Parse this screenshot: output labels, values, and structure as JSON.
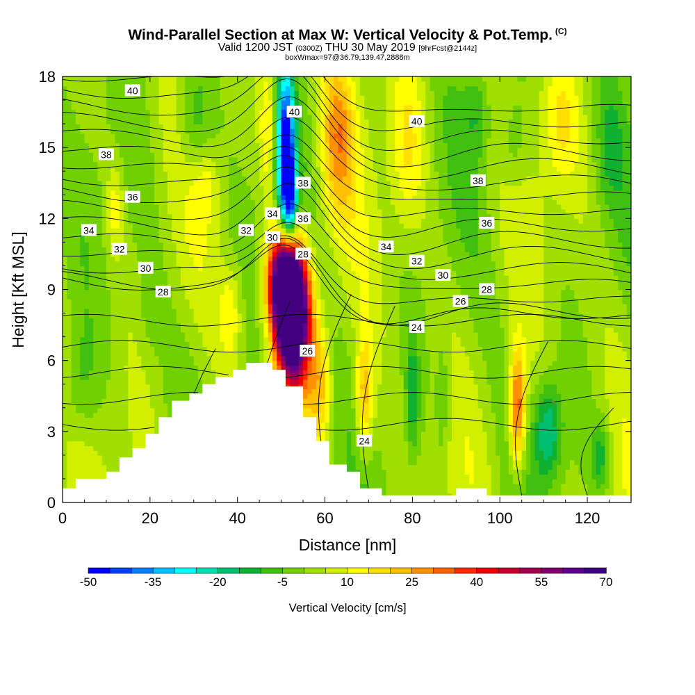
{
  "header": {
    "title": "Wind-Parallel Section at Max W: Vertical Velocity & Pot.Temp.",
    "copyright": "(C)",
    "valid_prefix": "Valid 1200 JST",
    "valid_utc": "(0300Z)",
    "valid_date": "THU 30 May 2019",
    "forecast": "[9hrFcst@2144z]",
    "box_info": "boxWmax=97@36.79,139.47,2888m"
  },
  "chart_data": {
    "type": "heatmap",
    "xlabel": "Distance [nm]",
    "ylabel": "Height [Kft MSL]",
    "xlim": [
      0,
      130
    ],
    "ylim": [
      0,
      18
    ],
    "x_ticks": [
      "0",
      "20",
      "40",
      "60",
      "80",
      "100",
      "120"
    ],
    "y_ticks": [
      "0",
      "3",
      "6",
      "9",
      "12",
      "15",
      "18"
    ],
    "colorbar": {
      "label": "Vertical Velocity [cm/s]",
      "min": -50,
      "max": 70,
      "step": 5,
      "tick_labels": [
        "-50",
        "-35",
        "-20",
        "-5",
        "10",
        "25",
        "40",
        "55",
        "70"
      ],
      "colors": [
        "#0000ff",
        "#0040ff",
        "#0080ff",
        "#00c0ff",
        "#00ffff",
        "#00e0b0",
        "#00c070",
        "#10b030",
        "#40c010",
        "#70d000",
        "#a0e000",
        "#d0f000",
        "#ffff00",
        "#ffe000",
        "#ffc000",
        "#ff9000",
        "#ff6000",
        "#ff2800",
        "#f00000",
        "#c80030",
        "#a00050",
        "#800070",
        "#600090",
        "#400080"
      ]
    },
    "terrain_profile": [
      {
        "x": 0,
        "y": 0.6
      },
      {
        "x": 3,
        "y": 0.6
      },
      {
        "x": 3,
        "y": 1.0
      },
      {
        "x": 10,
        "y": 1.0
      },
      {
        "x": 10,
        "y": 1.3
      },
      {
        "x": 13,
        "y": 1.3
      },
      {
        "x": 13,
        "y": 1.9
      },
      {
        "x": 16,
        "y": 1.9
      },
      {
        "x": 16,
        "y": 2.3
      },
      {
        "x": 19,
        "y": 2.3
      },
      {
        "x": 19,
        "y": 2.9
      },
      {
        "x": 22,
        "y": 2.9
      },
      {
        "x": 22,
        "y": 3.6
      },
      {
        "x": 25,
        "y": 3.6
      },
      {
        "x": 25,
        "y": 4.3
      },
      {
        "x": 29,
        "y": 4.3
      },
      {
        "x": 29,
        "y": 4.6
      },
      {
        "x": 32,
        "y": 4.6
      },
      {
        "x": 32,
        "y": 5.0
      },
      {
        "x": 35,
        "y": 5.0
      },
      {
        "x": 35,
        "y": 5.3
      },
      {
        "x": 39,
        "y": 5.3
      },
      {
        "x": 39,
        "y": 5.6
      },
      {
        "x": 42,
        "y": 5.6
      },
      {
        "x": 42,
        "y": 5.9
      },
      {
        "x": 48,
        "y": 5.9
      },
      {
        "x": 48,
        "y": 5.6
      },
      {
        "x": 51,
        "y": 5.6
      },
      {
        "x": 51,
        "y": 4.9
      },
      {
        "x": 55,
        "y": 4.9
      },
      {
        "x": 55,
        "y": 3.6
      },
      {
        "x": 58,
        "y": 3.6
      },
      {
        "x": 58,
        "y": 2.6
      },
      {
        "x": 61,
        "y": 2.6
      },
      {
        "x": 61,
        "y": 1.6
      },
      {
        "x": 65,
        "y": 1.6
      },
      {
        "x": 65,
        "y": 1.3
      },
      {
        "x": 68,
        "y": 1.3
      },
      {
        "x": 68,
        "y": 0.6
      },
      {
        "x": 73,
        "y": 0.6
      },
      {
        "x": 73,
        "y": 0.3
      },
      {
        "x": 90,
        "y": 0.3
      },
      {
        "x": 90,
        "y": 0.6
      },
      {
        "x": 97,
        "y": 0.6
      },
      {
        "x": 97,
        "y": 0.3
      },
      {
        "x": 130,
        "y": 0.3
      }
    ],
    "fields": [
      {
        "x": 52,
        "y": 8.5,
        "w": 70,
        "rx": 3.5,
        "ry": 2.5
      },
      {
        "x": 53,
        "y": 7.5,
        "w": 55,
        "rx": 4,
        "ry": 3
      },
      {
        "x": 50,
        "y": 9.5,
        "w": 40,
        "rx": 3.5,
        "ry": 2
      },
      {
        "x": 51,
        "y": 15,
        "w": -50,
        "rx": 2,
        "ry": 3.2
      },
      {
        "x": 52,
        "y": 12.5,
        "w": -35,
        "rx": 1.8,
        "ry": 2
      },
      {
        "x": 47,
        "y": 16,
        "w": 15,
        "rx": 2,
        "ry": 3
      },
      {
        "x": 63,
        "y": 15.5,
        "w": 22,
        "rx": 4,
        "ry": 3.5
      },
      {
        "x": 79,
        "y": 15,
        "w": 12,
        "rx": 4,
        "ry": 3.5
      },
      {
        "x": 38.5,
        "y": 8,
        "w": 12,
        "rx": 2.5,
        "ry": 2
      },
      {
        "x": 59,
        "y": 5,
        "w": 18,
        "rx": 2.5,
        "ry": 2.5
      },
      {
        "x": 69,
        "y": 4.5,
        "w": 22,
        "rx": 2,
        "ry": 2.5
      },
      {
        "x": 104,
        "y": 4,
        "w": 35,
        "rx": 1.8,
        "ry": 2.5
      },
      {
        "x": 80,
        "y": 4.5,
        "w": -15,
        "rx": 1.5,
        "ry": 2.5
      },
      {
        "x": 87,
        "y": 4.5,
        "w": -8,
        "rx": 1.5,
        "ry": 2.5
      },
      {
        "x": 111,
        "y": 3,
        "w": -22,
        "rx": 3,
        "ry": 2
      },
      {
        "x": 123,
        "y": 2,
        "w": -15,
        "rx": 2,
        "ry": 1.5
      },
      {
        "x": 30,
        "y": 16,
        "w": -12,
        "rx": 4,
        "ry": 2.5
      },
      {
        "x": 33,
        "y": 13.5,
        "w": 8,
        "rx": 3,
        "ry": 1.5
      },
      {
        "x": 95,
        "y": 16.5,
        "w": -10,
        "rx": 3,
        "ry": 2
      },
      {
        "x": 103,
        "y": 15,
        "w": -8,
        "rx": 3,
        "ry": 2
      },
      {
        "x": 114,
        "y": 16,
        "w": 10,
        "rx": 4,
        "ry": 2.5
      },
      {
        "x": 125,
        "y": 15,
        "w": -8,
        "rx": 3,
        "ry": 2.5
      },
      {
        "x": 4,
        "y": 5,
        "w": -8,
        "rx": 4,
        "ry": 2.5
      },
      {
        "x": 12,
        "y": 12.5,
        "w": 12,
        "rx": 2,
        "ry": 2
      },
      {
        "x": 20,
        "y": 8,
        "w": -5,
        "rx": 3,
        "ry": 2
      }
    ],
    "theta_contour_labels": [
      {
        "label": "40",
        "x": 16,
        "y": 17.4
      },
      {
        "label": "40",
        "x": 53,
        "y": 16.5
      },
      {
        "label": "40",
        "x": 81,
        "y": 16.1
      },
      {
        "label": "38",
        "x": 10,
        "y": 14.7
      },
      {
        "label": "38",
        "x": 55,
        "y": 13.5
      },
      {
        "label": "38",
        "x": 95,
        "y": 13.6
      },
      {
        "label": "36",
        "x": 16,
        "y": 12.9
      },
      {
        "label": "36",
        "x": 55,
        "y": 12.0
      },
      {
        "label": "36",
        "x": 97,
        "y": 11.8
      },
      {
        "label": "34",
        "x": 6,
        "y": 11.5
      },
      {
        "label": "34",
        "x": 48,
        "y": 12.2
      },
      {
        "label": "34",
        "x": 74,
        "y": 10.8
      },
      {
        "label": "32",
        "x": 13,
        "y": 10.7
      },
      {
        "label": "32",
        "x": 42,
        "y": 11.5
      },
      {
        "label": "32",
        "x": 81,
        "y": 10.2
      },
      {
        "label": "30",
        "x": 19,
        "y": 9.9
      },
      {
        "label": "30",
        "x": 48,
        "y": 11.2
      },
      {
        "label": "30",
        "x": 87,
        "y": 9.6
      },
      {
        "label": "28",
        "x": 23,
        "y": 8.9
      },
      {
        "label": "28",
        "x": 55,
        "y": 10.5
      },
      {
        "label": "28",
        "x": 97,
        "y": 9.0
      },
      {
        "label": "26",
        "x": 56,
        "y": 6.4
      },
      {
        "label": "26",
        "x": 91,
        "y": 8.5
      },
      {
        "label": "24",
        "x": 81,
        "y": 7.4
      },
      {
        "label": "24",
        "x": 69,
        "y": 2.6
      }
    ]
  }
}
